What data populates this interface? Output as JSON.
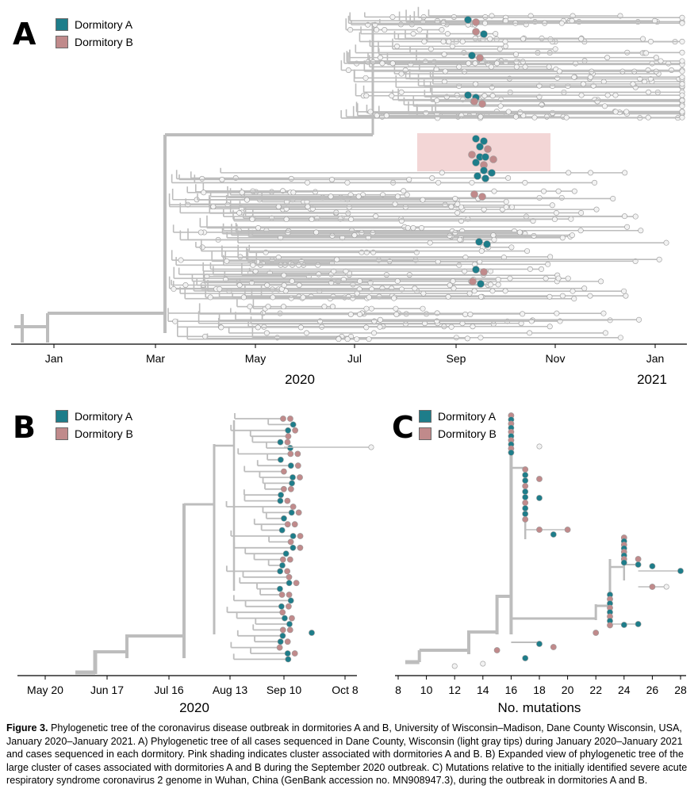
{
  "colors": {
    "dormitory_a": "#1e7d8a",
    "dormitory_b": "#c08a8b",
    "branch": "#bdbdbd",
    "tip_gray": "#f2f2f2",
    "cluster_shade": "#efc8c8"
  },
  "legend": {
    "dorm_a": "Dormitory A",
    "dorm_b": "Dormitory B"
  },
  "panels": [
    {
      "letter": "A",
      "chart_data": {
        "type": "scatter",
        "description_type": "phylogenetic-tree",
        "xaxis": {
          "ticks": [
            "Jan",
            "Mar",
            "May",
            "Jul",
            "Sep",
            "Nov",
            "Jan"
          ],
          "year_labels": [
            "2020",
            "2021"
          ]
        },
        "series": [
          {
            "name": "Dormitory A"
          },
          {
            "name": "Dormitory B"
          }
        ]
      }
    },
    {
      "letter": "B",
      "chart_data": {
        "type": "scatter",
        "description_type": "phylogenetic-tree",
        "xaxis": {
          "ticks": [
            "May 20",
            "Jun 17",
            "Jul 16",
            "Aug 13",
            "Sep 10",
            "Oct 8"
          ],
          "year_labels": [
            "2020"
          ]
        },
        "series": [
          {
            "name": "Dormitory A"
          },
          {
            "name": "Dormitory B"
          }
        ]
      }
    },
    {
      "letter": "C",
      "chart_data": {
        "type": "scatter",
        "description_type": "phylogenetic-tree",
        "xaxis": {
          "ticks": [
            "8",
            "10",
            "12",
            "14",
            "16",
            "18",
            "20",
            "22",
            "24",
            "26",
            "28"
          ],
          "xlim": [
            8,
            28
          ],
          "label": "No. mutations"
        },
        "series": [
          {
            "name": "Dormitory A"
          },
          {
            "name": "Dormitory B"
          }
        ]
      }
    }
  ],
  "caption": {
    "label": "Figure 3.",
    "text": " Phylogenetic tree of the coronavirus disease outbreak in dormitories A and B, University of Wisconsin–Madison, Dane County Wisconsin, USA, January 2020–January 2021. A) Phylogenetic tree of all cases sequenced in Dane County, Wisconsin (light gray tips) during January 2020–January 2021 and cases sequenced in each dormitory. Pink shading indicates cluster associated with dormitories A and B. B) Expanded view of phylogenetic tree of the large cluster of cases associated with dormitories A and B during the September 2020 outbreak. C) Mutations relative to the initially identified severe acute respiratory syndrome coronavirus 2 genome in Wuhan, China (GenBank accession no. MN908947.3), during the outbreak in dormitories A and B."
  }
}
